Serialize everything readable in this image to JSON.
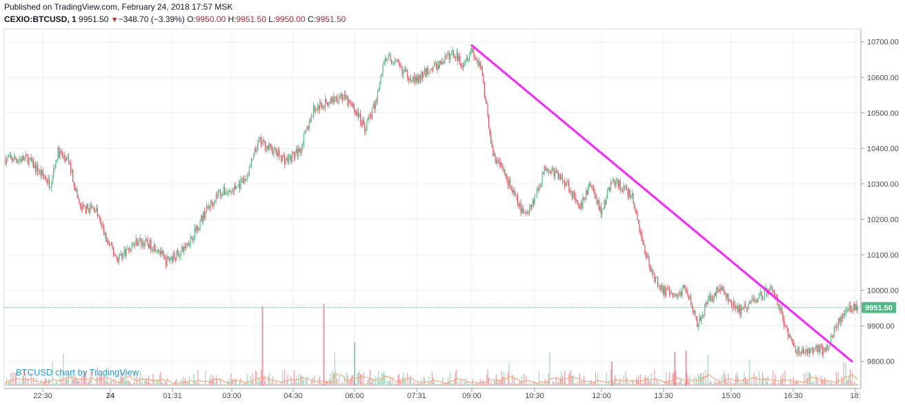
{
  "header": {
    "published": "Published on TradingView.com, February 24, 2018 17:57 MSK",
    "symbol": "CEXIO:BTCUSD, 1",
    "last": "9951.50",
    "change_arrow": "▼",
    "change": "−348.70 (−3.39%)",
    "o_label": "O:",
    "o_value": "9950.00",
    "h_label": "H:",
    "h_value": "9951.50",
    "l_label": "L:",
    "l_value": "9950.00",
    "c_label": "C:",
    "c_value": "9951.50"
  },
  "watermark": "BTCUSD chart by TradingView",
  "colors": {
    "up": "#53b987",
    "down": "#eb4d5c",
    "trendline": "#ff1fff",
    "price_line": "#53b987",
    "volume_ma": "#ff9966",
    "grid": "#eceff2"
  },
  "chart_data": {
    "type": "candlestick",
    "y_ticks": [
      "10700.00",
      "10600.00",
      "10500.00",
      "10400.00",
      "10300.00",
      "10200.00",
      "10100.00",
      "10000.00",
      "9900.00",
      "9800.00"
    ],
    "x_ticks": [
      "22:30",
      "24",
      "01:31",
      "03:00",
      "04:30",
      "06:00",
      "07:31",
      "09:00",
      "10:30",
      "12:00",
      "13:30",
      "15:00",
      "16:30",
      "18:"
    ],
    "last_price_label": "9951.50",
    "ylim": [
      9740,
      10735
    ],
    "price_path": [
      [
        "22:10",
        10370
      ],
      [
        "22:40",
        10300
      ],
      [
        "22:50",
        10390
      ],
      [
        "23:05",
        10360
      ],
      [
        "23:20",
        10230
      ],
      [
        "23:40",
        10230
      ],
      [
        "23:55",
        10140
      ],
      [
        "00:10",
        10090
      ],
      [
        "00:40",
        10140
      ],
      [
        "01:10",
        10120
      ],
      [
        "01:20",
        10080
      ],
      [
        "01:45",
        10110
      ],
      [
        "02:00",
        10150
      ],
      [
        "02:20",
        10220
      ],
      [
        "02:40",
        10275
      ],
      [
        "03:00",
        10280
      ],
      [
        "03:20",
        10310
      ],
      [
        "03:40",
        10420
      ],
      [
        "04:00",
        10395
      ],
      [
        "04:20",
        10365
      ],
      [
        "04:40",
        10395
      ],
      [
        "05:00",
        10510
      ],
      [
        "05:20",
        10530
      ],
      [
        "05:40",
        10550
      ],
      [
        "06:00",
        10510
      ],
      [
        "06:15",
        10460
      ],
      [
        "06:30",
        10520
      ],
      [
        "06:45",
        10660
      ],
      [
        "07:00",
        10640
      ],
      [
        "07:15",
        10610
      ],
      [
        "07:31",
        10590
      ],
      [
        "07:50",
        10620
      ],
      [
        "08:10",
        10640
      ],
      [
        "08:30",
        10670
      ],
      [
        "08:45",
        10640
      ],
      [
        "09:00",
        10680
      ],
      [
        "09:15",
        10610
      ],
      [
        "09:30",
        10380
      ],
      [
        "09:45",
        10340
      ],
      [
        "10:00",
        10270
      ],
      [
        "10:15",
        10210
      ],
      [
        "10:30",
        10260
      ],
      [
        "10:45",
        10350
      ],
      [
        "11:00",
        10325
      ],
      [
        "11:15",
        10300
      ],
      [
        "11:30",
        10225
      ],
      [
        "11:45",
        10300
      ],
      [
        "12:00",
        10220
      ],
      [
        "12:15",
        10310
      ],
      [
        "12:30",
        10290
      ],
      [
        "12:45",
        10260
      ],
      [
        "13:00",
        10130
      ],
      [
        "13:15",
        10040
      ],
      [
        "13:30",
        10000
      ],
      [
        "13:45",
        9980
      ],
      [
        "14:00",
        10010
      ],
      [
        "14:15",
        9910
      ],
      [
        "14:30",
        9970
      ],
      [
        "14:45",
        10010
      ],
      [
        "15:00",
        9960
      ],
      [
        "15:15",
        9940
      ],
      [
        "15:30",
        9970
      ],
      [
        "15:45",
        9990
      ],
      [
        "16:00",
        10010
      ],
      [
        "16:15",
        9920
      ],
      [
        "16:30",
        9840
      ],
      [
        "16:45",
        9820
      ],
      [
        "17:00",
        9840
      ],
      [
        "17:15",
        9825
      ],
      [
        "17:30",
        9890
      ],
      [
        "17:45",
        9940
      ],
      [
        "18:00",
        9951.5
      ]
    ],
    "volume_spikes": [
      [
        "03:45",
        0.82
      ],
      [
        "05:15",
        0.85
      ],
      [
        "06:00",
        0.45
      ],
      [
        "12:15",
        0.25
      ],
      [
        "13:45",
        0.35
      ],
      [
        "14:00",
        0.36
      ]
    ],
    "trendline": {
      "from": [
        "09:00",
        10690
      ],
      "to": [
        "17:55",
        9800
      ]
    }
  }
}
